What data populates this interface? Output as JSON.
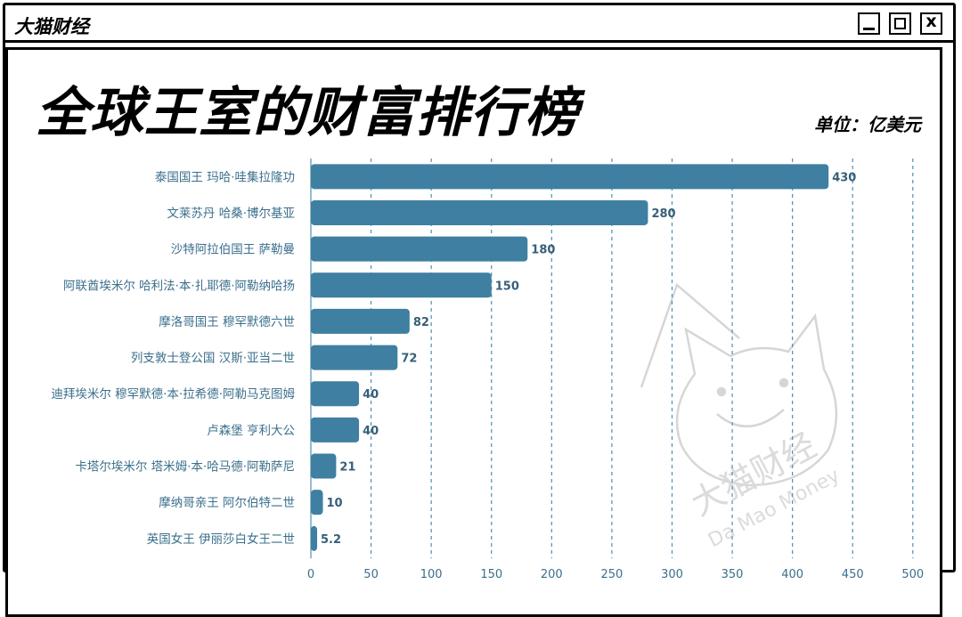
{
  "window": {
    "brand": "大猫财经"
  },
  "header": {
    "title": "全球王室的财富排行榜",
    "unit": "单位：亿美元"
  },
  "watermark": {
    "cn": "大猫财经",
    "en": "Da Mao Money"
  },
  "colors": {
    "bar": "#3f7fa1",
    "label": "#3b6f8c"
  },
  "chart_data": {
    "type": "bar",
    "orientation": "horizontal",
    "title": "全球王室的财富排行榜",
    "unit": "单位：亿美元",
    "categories": [
      "泰国国王 玛哈·哇集拉隆功",
      "文莱苏丹 哈桑·博尔基亚",
      "沙特阿拉伯国王 萨勒曼",
      "阿联酋埃米尔 哈利法·本·扎耶德·阿勒纳哈扬",
      "摩洛哥国王 穆罕默德六世",
      "列支敦士登公国 汉斯·亚当二世",
      "迪拜埃米尔 穆罕默德·本·拉希德·阿勒马克图姆",
      "卢森堡 亨利大公",
      "卡塔尔埃米尔 塔米姆·本·哈马德·阿勒萨尼",
      "摩纳哥亲王 阿尔伯特二世",
      "英国女王 伊丽莎白女王二世"
    ],
    "values": [
      430,
      280,
      180,
      150,
      82,
      72,
      40,
      40,
      21,
      10,
      5.2
    ],
    "value_labels": [
      "430",
      "280",
      "180",
      "150",
      "82",
      "72",
      "40",
      "40",
      "21",
      "10",
      "5.2"
    ],
    "xlim": [
      0,
      500
    ],
    "xticks": [
      "0",
      "50",
      "100",
      "150",
      "200",
      "250",
      "300",
      "350",
      "400",
      "450",
      "500"
    ],
    "grid": "vertical dashed"
  }
}
